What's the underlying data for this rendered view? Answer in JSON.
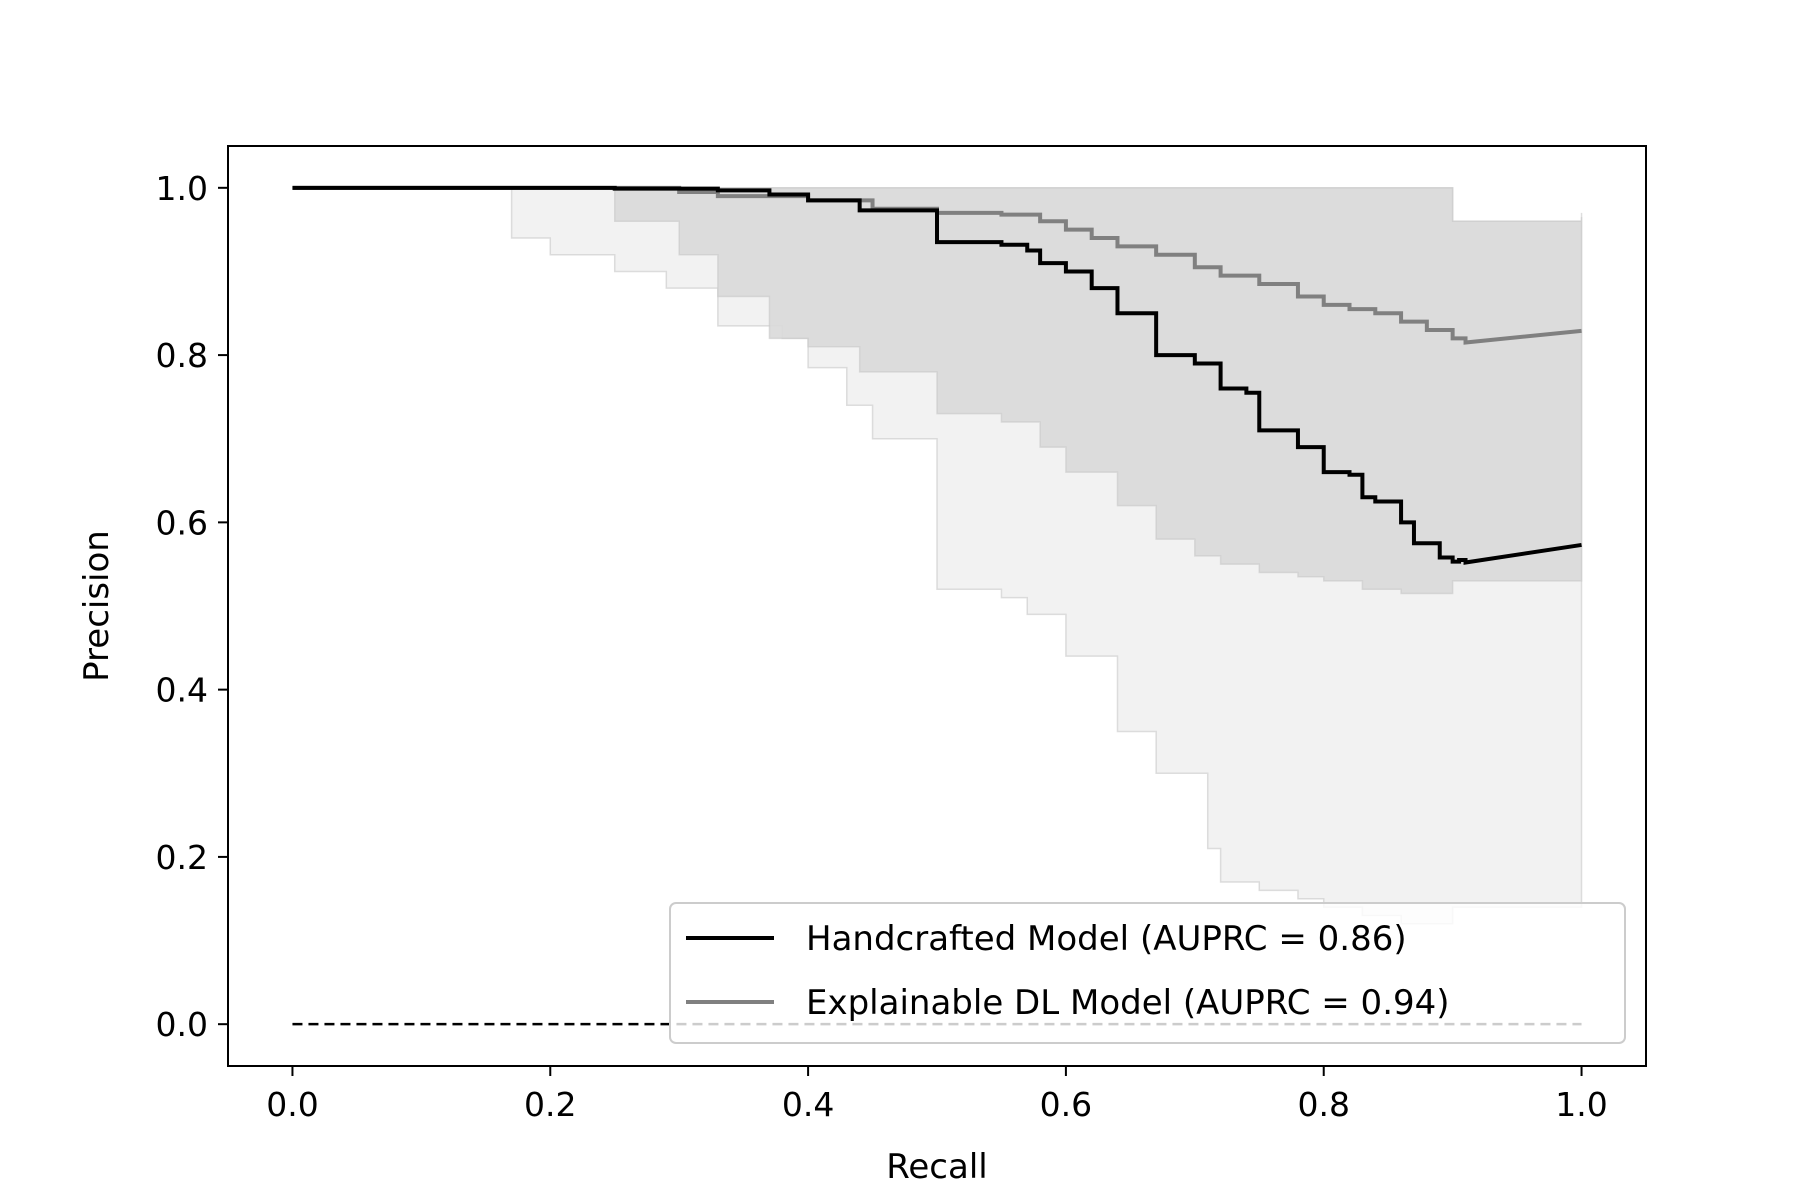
{
  "chart_data": {
    "type": "line",
    "title": "",
    "xlabel": "Recall",
    "ylabel": "Precision",
    "xlim": [
      -0.05,
      1.05
    ],
    "ylim": [
      -0.05,
      1.05
    ],
    "xticks": [
      "0.0",
      "0.2",
      "0.4",
      "0.6",
      "0.8",
      "1.0"
    ],
    "yticks": [
      "0.0",
      "0.2",
      "0.4",
      "0.6",
      "0.8",
      "1.0"
    ],
    "grid": false,
    "legend_position": "lower-right",
    "baseline": {
      "style": "dashed",
      "color": "#000000",
      "x": [
        0.0,
        1.0
      ],
      "y": [
        0.0,
        0.0
      ]
    },
    "series": [
      {
        "name": "Handcrafted Model (AUPRC = 0.86)",
        "color": "#000000",
        "step": true,
        "x": [
          0.0,
          0.17,
          0.25,
          0.33,
          0.37,
          0.4,
          0.44,
          0.5,
          0.55,
          0.57,
          0.58,
          0.6,
          0.62,
          0.64,
          0.67,
          0.7,
          0.72,
          0.74,
          0.75,
          0.78,
          0.8,
          0.82,
          0.83,
          0.84,
          0.86,
          0.87,
          0.89,
          0.9,
          0.905,
          0.91,
          1.0
        ],
        "y": [
          1.0,
          1.0,
          0.999,
          0.997,
          0.992,
          0.985,
          0.973,
          0.935,
          0.932,
          0.925,
          0.91,
          0.9,
          0.88,
          0.85,
          0.8,
          0.79,
          0.76,
          0.755,
          0.71,
          0.69,
          0.66,
          0.657,
          0.63,
          0.625,
          0.6,
          0.575,
          0.558,
          0.553,
          0.555,
          0.552,
          0.573
        ]
      },
      {
        "name": "Explainable DL Model (AUPRC = 0.94)",
        "color": "#808080",
        "step": true,
        "x": [
          0.0,
          0.25,
          0.3,
          0.33,
          0.4,
          0.45,
          0.5,
          0.55,
          0.58,
          0.6,
          0.62,
          0.64,
          0.67,
          0.7,
          0.72,
          0.75,
          0.78,
          0.8,
          0.82,
          0.84,
          0.86,
          0.88,
          0.9,
          0.91,
          1.0
        ],
        "y": [
          1.0,
          1.0,
          0.995,
          0.99,
          0.985,
          0.975,
          0.97,
          0.968,
          0.96,
          0.95,
          0.94,
          0.93,
          0.92,
          0.905,
          0.895,
          0.885,
          0.87,
          0.86,
          0.855,
          0.85,
          0.84,
          0.83,
          0.82,
          0.815,
          0.829
        ]
      }
    ],
    "bands": [
      {
        "color": "#d9d9d9",
        "alpha": 0.35,
        "x": [
          0.0,
          0.17,
          0.2,
          0.25,
          0.29,
          0.33,
          0.38,
          0.4,
          0.43,
          0.45,
          0.5,
          0.55,
          0.57,
          0.6,
          0.64,
          0.67,
          0.71,
          0.72,
          0.75,
          0.78,
          0.8,
          0.83,
          0.86,
          0.9,
          1.0
        ],
        "lower": [
          1.0,
          0.94,
          0.92,
          0.9,
          0.88,
          0.835,
          0.82,
          0.785,
          0.74,
          0.7,
          0.52,
          0.51,
          0.49,
          0.44,
          0.35,
          0.3,
          0.21,
          0.17,
          0.16,
          0.15,
          0.14,
          0.13,
          0.12,
          0.14,
          0.18
        ],
        "upper": [
          1.0,
          1.0,
          1.0,
          1.0,
          1.0,
          1.0,
          1.0,
          1.0,
          1.0,
          1.0,
          1.0,
          1.0,
          1.0,
          1.0,
          1.0,
          1.0,
          1.0,
          1.0,
          1.0,
          1.0,
          1.0,
          1.0,
          1.0,
          0.96,
          0.97
        ]
      },
      {
        "color": "#d9d9d9",
        "alpha": 0.9,
        "x": [
          0.0,
          0.25,
          0.3,
          0.33,
          0.37,
          0.4,
          0.44,
          0.5,
          0.55,
          0.58,
          0.6,
          0.64,
          0.67,
          0.7,
          0.72,
          0.75,
          0.78,
          0.8,
          0.83,
          0.86,
          0.9,
          1.0
        ],
        "lower": [
          1.0,
          0.96,
          0.92,
          0.87,
          0.82,
          0.81,
          0.78,
          0.73,
          0.72,
          0.69,
          0.66,
          0.62,
          0.58,
          0.56,
          0.55,
          0.54,
          0.535,
          0.53,
          0.52,
          0.515,
          0.53,
          0.57
        ],
        "upper": [
          1.0,
          1.0,
          1.0,
          1.0,
          1.0,
          1.0,
          1.0,
          1.0,
          1.0,
          1.0,
          1.0,
          1.0,
          1.0,
          1.0,
          1.0,
          1.0,
          1.0,
          1.0,
          1.0,
          1.0,
          0.96,
          0.965
        ]
      }
    ]
  }
}
